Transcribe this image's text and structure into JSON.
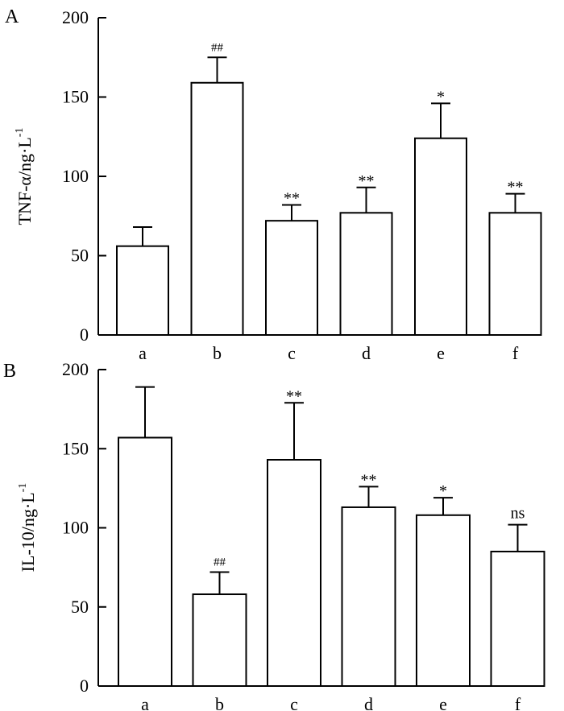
{
  "chart_data": [
    {
      "type": "bar",
      "panel": "A",
      "ylabel": "TNF-α/ng·L",
      "ylabel_sup": "-1",
      "categories": [
        "a",
        "b",
        "c",
        "d",
        "e",
        "f"
      ],
      "values": [
        56,
        159,
        72,
        77,
        124,
        77
      ],
      "errors": [
        12,
        16,
        10,
        16,
        22,
        12
      ],
      "annotations": [
        "",
        "##",
        "**",
        "**",
        "*",
        "**"
      ],
      "ylim": [
        0,
        200
      ],
      "yticks": [
        0,
        50,
        100,
        150,
        200
      ]
    },
    {
      "type": "bar",
      "panel": "B",
      "ylabel": "IL-10/ng·L",
      "ylabel_sup": "-1",
      "categories": [
        "a",
        "b",
        "c",
        "d",
        "e",
        "f"
      ],
      "values": [
        157,
        58,
        143,
        113,
        108,
        85
      ],
      "errors": [
        32,
        14,
        36,
        13,
        11,
        17
      ],
      "annotations": [
        "",
        "##",
        "**",
        "**",
        "*",
        "ns"
      ],
      "ylim": [
        0,
        200
      ],
      "yticks": [
        0,
        50,
        100,
        150,
        200
      ]
    }
  ]
}
